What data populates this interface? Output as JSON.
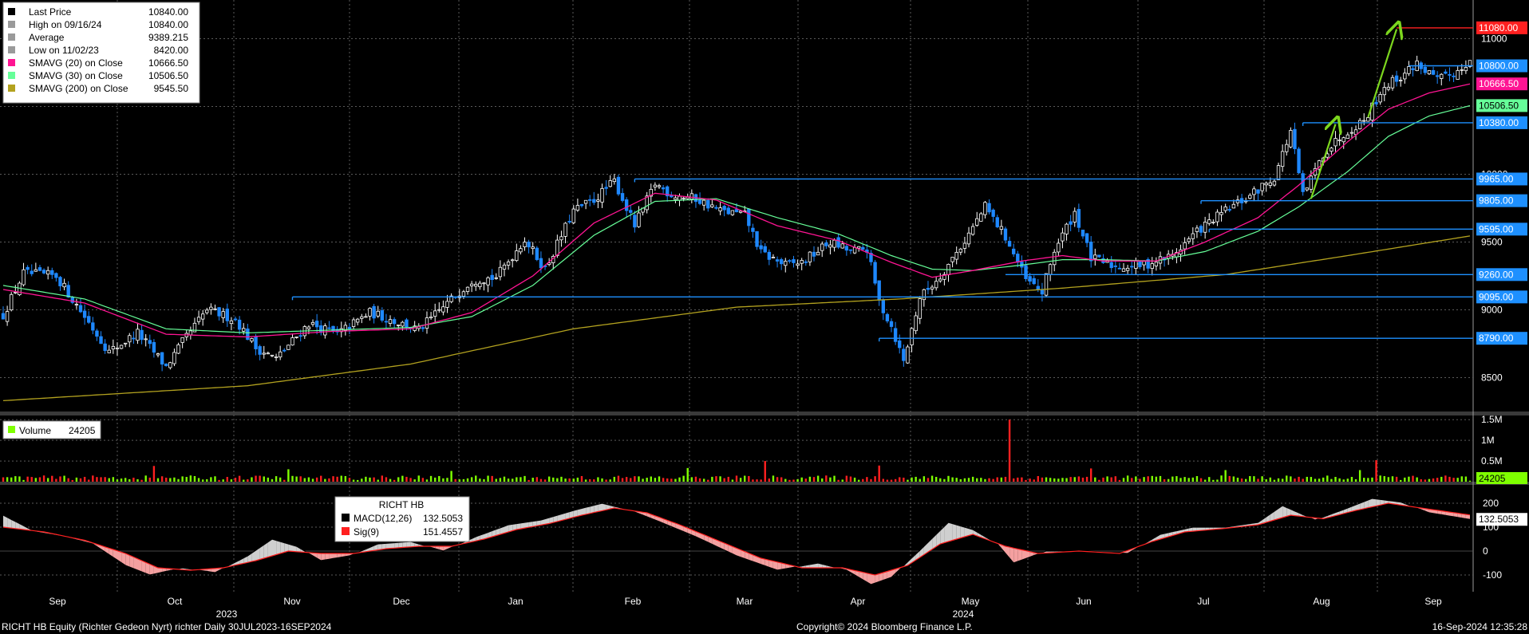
{
  "footer": {
    "left": "RICHT HB Equity (Richter Gedeon Nyrt) richter  Daily 30JUL2023-16SEP2024",
    "center": "Copyright© 2024 Bloomberg Finance L.P.",
    "right": "16-Sep-2024 12:35:28"
  },
  "colors": {
    "background": "#000000",
    "grid": "#5a5a5a",
    "up": "#ffffff",
    "down": "#1e88ff",
    "sma20": "#ff1493",
    "sma30": "#66ff99",
    "sma200": "#b3a21f",
    "level": "#1e90ff",
    "target": "#ff2020",
    "arrow": "#7cd61e",
    "vol_up": "#7fff00",
    "vol_down": "#ff2020",
    "macd": "#000000",
    "signal": "#ff2020"
  },
  "chart_data": [
    {
      "type": "candlestick",
      "ylim": [
        8250,
        11250
      ],
      "yticks": [
        8500,
        9000,
        9500,
        10000,
        10500,
        11000
      ],
      "x_months": [
        "Sep",
        "Oct",
        "Nov",
        "Dec",
        "Jan",
        "Feb",
        "Mar",
        "Apr",
        "May",
        "Jun",
        "Jul",
        "Aug",
        "Sep"
      ],
      "x_years": [
        "2023",
        "2024"
      ],
      "legend": [
        {
          "label": "Last Price",
          "value": "10840.00",
          "color": "#000000"
        },
        {
          "label": "High on 09/16/24",
          "value": "10840.00",
          "color": "#9a9a9a"
        },
        {
          "label": "Average",
          "value": "9389.215",
          "color": "#9a9a9a"
        },
        {
          "label": "Low on 11/02/23",
          "value": "8420.00",
          "color": "#9a9a9a"
        },
        {
          "label": "SMAVG (20)  on Close",
          "value": "10666.50",
          "color": "#ff1493"
        },
        {
          "label": "SMAVG (30)  on Close",
          "value": "10506.50",
          "color": "#66ff99"
        },
        {
          "label": "SMAVG (200)  on Close",
          "value": "9545.50",
          "color": "#b3a21f"
        }
      ],
      "key_levels": [
        11080,
        10800,
        10380,
        9965,
        9805,
        9595,
        9260,
        9095,
        8790
      ],
      "right_labels": [
        {
          "text": "11080.00",
          "bg": "#ff2020",
          "fg": "#ffffff"
        },
        {
          "text": "10800.00",
          "bg": "#1e90ff",
          "fg": "#ffffff"
        },
        {
          "text": "10666.50",
          "bg": "#ff1493",
          "fg": "#ffffff"
        },
        {
          "text": "10506.50",
          "bg": "#66ff99",
          "fg": "#000000"
        },
        {
          "text": "10380.00",
          "bg": "#1e90ff",
          "fg": "#ffffff"
        },
        {
          "text": "9965.00",
          "bg": "#1e90ff",
          "fg": "#ffffff"
        },
        {
          "text": "9805.00",
          "bg": "#1e90ff",
          "fg": "#ffffff"
        },
        {
          "text": "9595.00",
          "bg": "#1e90ff",
          "fg": "#ffffff"
        },
        {
          "text": "9260.00",
          "bg": "#1e90ff",
          "fg": "#ffffff"
        },
        {
          "text": "9095.00",
          "bg": "#1e90ff",
          "fg": "#ffffff"
        },
        {
          "text": "8790.00",
          "bg": "#1e90ff",
          "fg": "#ffffff"
        }
      ],
      "close_anchors": [
        [
          0,
          8960
        ],
        [
          5,
          9270
        ],
        [
          13,
          9250
        ],
        [
          20,
          8950
        ],
        [
          26,
          8690
        ],
        [
          33,
          8830
        ],
        [
          40,
          8580
        ],
        [
          44,
          8760
        ],
        [
          50,
          9000
        ],
        [
          57,
          8930
        ],
        [
          62,
          8720
        ],
        [
          67,
          8640
        ],
        [
          75,
          8900
        ],
        [
          82,
          8820
        ],
        [
          90,
          8980
        ],
        [
          95,
          8930
        ],
        [
          102,
          8850
        ],
        [
          108,
          9020
        ],
        [
          115,
          9220
        ],
        [
          121,
          9240
        ],
        [
          128,
          9520
        ],
        [
          133,
          9300
        ],
        [
          140,
          9730
        ],
        [
          145,
          9810
        ],
        [
          150,
          9950
        ],
        [
          155,
          9620
        ],
        [
          160,
          9930
        ],
        [
          164,
          9850
        ],
        [
          170,
          9820
        ],
        [
          176,
          9730
        ],
        [
          182,
          9700
        ],
        [
          186,
          9420
        ],
        [
          192,
          9330
        ],
        [
          196,
          9350
        ],
        [
          203,
          9500
        ],
        [
          208,
          9430
        ],
        [
          212,
          9450
        ],
        [
          215,
          9060
        ],
        [
          218,
          8880
        ],
        [
          221,
          8620
        ],
        [
          225,
          9090
        ],
        [
          230,
          9250
        ],
        [
          236,
          9510
        ],
        [
          241,
          9760
        ],
        [
          246,
          9540
        ],
        [
          251,
          9220
        ],
        [
          255,
          9130
        ],
        [
          258,
          9440
        ],
        [
          263,
          9720
        ],
        [
          267,
          9380
        ],
        [
          273,
          9320
        ],
        [
          280,
          9330
        ],
        [
          287,
          9400
        ],
        [
          293,
          9580
        ],
        [
          300,
          9730
        ],
        [
          306,
          9840
        ],
        [
          312,
          9980
        ],
        [
          316,
          10320
        ],
        [
          319,
          9840
        ],
        [
          324,
          10150
        ],
        [
          329,
          10300
        ],
        [
          334,
          10400
        ],
        [
          339,
          10650
        ],
        [
          343,
          10720
        ],
        [
          347,
          10820
        ],
        [
          352,
          10690
        ],
        [
          357,
          10760
        ],
        [
          360,
          10840
        ]
      ],
      "sma20_anchors": [
        [
          0,
          9150
        ],
        [
          20,
          9050
        ],
        [
          40,
          8820
        ],
        [
          60,
          8800
        ],
        [
          80,
          8840
        ],
        [
          100,
          8860
        ],
        [
          115,
          8980
        ],
        [
          130,
          9250
        ],
        [
          145,
          9640
        ],
        [
          160,
          9860
        ],
        [
          175,
          9810
        ],
        [
          190,
          9620
        ],
        [
          205,
          9510
        ],
        [
          218,
          9350
        ],
        [
          228,
          9240
        ],
        [
          238,
          9290
        ],
        [
          250,
          9360
        ],
        [
          260,
          9400
        ],
        [
          270,
          9360
        ],
        [
          283,
          9360
        ],
        [
          295,
          9500
        ],
        [
          308,
          9680
        ],
        [
          318,
          9920
        ],
        [
          330,
          10240
        ],
        [
          340,
          10480
        ],
        [
          350,
          10600
        ],
        [
          360,
          10666
        ]
      ],
      "sma30_anchors": [
        [
          0,
          9180
        ],
        [
          20,
          9080
        ],
        [
          40,
          8860
        ],
        [
          60,
          8830
        ],
        [
          80,
          8850
        ],
        [
          100,
          8870
        ],
        [
          115,
          8950
        ],
        [
          130,
          9180
        ],
        [
          145,
          9550
        ],
        [
          160,
          9800
        ],
        [
          175,
          9820
        ],
        [
          190,
          9680
        ],
        [
          205,
          9560
        ],
        [
          218,
          9400
        ],
        [
          228,
          9300
        ],
        [
          238,
          9290
        ],
        [
          250,
          9330
        ],
        [
          260,
          9370
        ],
        [
          270,
          9370
        ],
        [
          283,
          9360
        ],
        [
          295,
          9430
        ],
        [
          308,
          9580
        ],
        [
          318,
          9760
        ],
        [
          330,
          10020
        ],
        [
          340,
          10280
        ],
        [
          350,
          10430
        ],
        [
          360,
          10506
        ]
      ],
      "sma200_anchors": [
        [
          0,
          8330
        ],
        [
          60,
          8440
        ],
        [
          100,
          8600
        ],
        [
          140,
          8860
        ],
        [
          180,
          9020
        ],
        [
          220,
          9080
        ],
        [
          260,
          9160
        ],
        [
          300,
          9260
        ],
        [
          330,
          9400
        ],
        [
          360,
          9545
        ]
      ],
      "arrows": [
        {
          "from": [
            321,
            9820
          ],
          "to": [
            327,
            10370
          ]
        },
        {
          "from": [
            335,
            10420
          ],
          "to": [
            342,
            11070
          ]
        }
      ]
    },
    {
      "type": "bar",
      "legend_label": "Volume",
      "legend_value": "24205",
      "ylim": [
        0,
        1600000
      ],
      "yticks": [
        {
          "value": 500000,
          "label": "0.5M"
        },
        {
          "value": 1000000,
          "label": "1M"
        },
        {
          "value": 1500000,
          "label": "1.5M"
        }
      ],
      "last_value": "24205",
      "spikes": [
        {
          "index": 37,
          "value": 380000
        },
        {
          "index": 70,
          "value": 300000
        },
        {
          "index": 110,
          "value": 260000
        },
        {
          "index": 168,
          "value": 330000
        },
        {
          "index": 187,
          "value": 500000
        },
        {
          "index": 215,
          "value": 390000
        },
        {
          "index": 247,
          "value": 1500000
        },
        {
          "index": 267,
          "value": 320000
        },
        {
          "index": 300,
          "value": 280000
        },
        {
          "index": 333,
          "value": 280000
        },
        {
          "index": 337,
          "value": 520000
        }
      ]
    },
    {
      "type": "line",
      "title": "RICHT HB",
      "ylim": [
        -170,
        260
      ],
      "yticks": [
        -100,
        0,
        100,
        200
      ],
      "legend": [
        {
          "label": "MACD(12,26)",
          "value": "132.5053",
          "color": "#000000"
        },
        {
          "label": "Sig(9)",
          "value": "151.4557",
          "color": "#ff2020"
        }
      ],
      "right_label": "132.5053",
      "macd_anchors": [
        [
          0,
          150
        ],
        [
          8,
          80
        ],
        [
          15,
          60
        ],
        [
          22,
          30
        ],
        [
          30,
          -60
        ],
        [
          36,
          -100
        ],
        [
          44,
          -70
        ],
        [
          52,
          -90
        ],
        [
          60,
          -20
        ],
        [
          66,
          50
        ],
        [
          72,
          20
        ],
        [
          78,
          -40
        ],
        [
          85,
          -20
        ],
        [
          92,
          30
        ],
        [
          100,
          40
        ],
        [
          108,
          0
        ],
        [
          116,
          60
        ],
        [
          124,
          110
        ],
        [
          132,
          130
        ],
        [
          140,
          170
        ],
        [
          147,
          200
        ],
        [
          154,
          170
        ],
        [
          160,
          130
        ],
        [
          170,
          60
        ],
        [
          180,
          -20
        ],
        [
          190,
          -80
        ],
        [
          200,
          -50
        ],
        [
          207,
          -80
        ],
        [
          213,
          -140
        ],
        [
          218,
          -110
        ],
        [
          226,
          20
        ],
        [
          232,
          120
        ],
        [
          238,
          90
        ],
        [
          244,
          30
        ],
        [
          248,
          -50
        ],
        [
          256,
          0
        ],
        [
          266,
          0
        ],
        [
          276,
          -10
        ],
        [
          284,
          70
        ],
        [
          292,
          100
        ],
        [
          300,
          100
        ],
        [
          308,
          120
        ],
        [
          314,
          190
        ],
        [
          318,
          160
        ],
        [
          322,
          130
        ],
        [
          330,
          180
        ],
        [
          336,
          220
        ],
        [
          343,
          205
        ],
        [
          350,
          160
        ],
        [
          360,
          132
        ]
      ],
      "signal_anchors": [
        [
          0,
          100
        ],
        [
          10,
          80
        ],
        [
          20,
          45
        ],
        [
          30,
          -10
        ],
        [
          38,
          -70
        ],
        [
          46,
          -80
        ],
        [
          54,
          -70
        ],
        [
          62,
          -40
        ],
        [
          70,
          0
        ],
        [
          78,
          -10
        ],
        [
          86,
          -10
        ],
        [
          94,
          10
        ],
        [
          102,
          20
        ],
        [
          110,
          20
        ],
        [
          118,
          50
        ],
        [
          126,
          90
        ],
        [
          134,
          115
        ],
        [
          142,
          150
        ],
        [
          150,
          180
        ],
        [
          158,
          160
        ],
        [
          166,
          110
        ],
        [
          176,
          40
        ],
        [
          186,
          -30
        ],
        [
          196,
          -70
        ],
        [
          206,
          -70
        ],
        [
          214,
          -100
        ],
        [
          222,
          -60
        ],
        [
          230,
          30
        ],
        [
          238,
          70
        ],
        [
          246,
          20
        ],
        [
          254,
          -10
        ],
        [
          264,
          0
        ],
        [
          274,
          -10
        ],
        [
          282,
          40
        ],
        [
          290,
          80
        ],
        [
          300,
          95
        ],
        [
          308,
          110
        ],
        [
          316,
          150
        ],
        [
          324,
          135
        ],
        [
          332,
          170
        ],
        [
          340,
          200
        ],
        [
          348,
          180
        ],
        [
          360,
          151
        ]
      ]
    }
  ]
}
